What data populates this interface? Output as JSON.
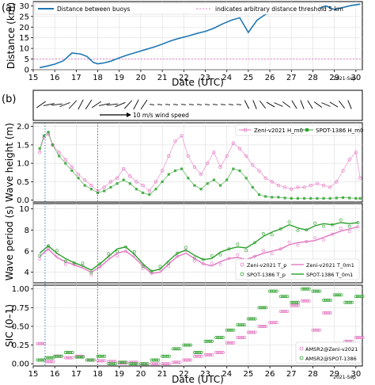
{
  "figure": {
    "panel_labels": [
      "(a)",
      "(b)"
    ],
    "date_label": "2021-Sep"
  },
  "chart_data": [
    {
      "type": "line",
      "panel": "a",
      "xlabel": "Date (UTC)",
      "ylabel": "Distance (km)",
      "xlim": [
        15,
        30.3
      ],
      "ylim": [
        0,
        32
      ],
      "xticks": [
        15,
        16,
        17,
        18,
        19,
        20,
        21,
        22,
        23,
        24,
        25,
        26,
        27,
        28,
        29,
        30
      ],
      "yticks": [
        0,
        5,
        10,
        15,
        20,
        25,
        30
      ],
      "legend": [
        "Distance between buoys",
        "indicates arbitrary distance threshold 5 km"
      ],
      "threshold": 5,
      "series": [
        {
          "name": "Distance between buoys",
          "color": "#1f77b4",
          "x": [
            15.3,
            15.6,
            16.0,
            16.4,
            16.8,
            17.2,
            17.5,
            17.8,
            18.0,
            18.3,
            18.6,
            19.0,
            19.4,
            19.8,
            20.2,
            20.6,
            21.0,
            21.4,
            21.8,
            22.2,
            22.6,
            23.0,
            23.4,
            23.8,
            24.2,
            24.6,
            25.0,
            25.4,
            25.8,
            26.2,
            26.6,
            27.0,
            27.4,
            27.8,
            28.2,
            28.6,
            29.0,
            29.4,
            29.8,
            30.2
          ],
          "y": [
            1.0,
            1.6,
            2.6,
            4.2,
            7.8,
            7.4,
            6.2,
            3.4,
            2.8,
            3.2,
            4.0,
            5.6,
            7.0,
            8.2,
            9.4,
            10.6,
            12.0,
            13.6,
            14.8,
            15.8,
            17.0,
            18.0,
            19.5,
            21.5,
            23.2,
            24.4,
            17.5,
            23.2,
            26.0,
            27.0,
            28.2,
            29.0,
            29.4,
            29.8,
            28.4,
            30.0,
            28.2,
            29.2,
            30.2,
            30.8
          ]
        }
      ]
    },
    {
      "type": "quiver",
      "panel": "b-wind",
      "scale_label": "10 m/s wind speed"
    },
    {
      "type": "scatter",
      "panel": "b1",
      "ylabel": "Wave height (m)",
      "xlim": [
        15,
        30.3
      ],
      "ylim": [
        -0.05,
        2.1
      ],
      "yticks": [
        0.0,
        0.5,
        1.0,
        1.5,
        2.0
      ],
      "legend": [
        "Zeni-v2021 H_m0",
        "SPOT-1386 H_m0"
      ],
      "series": [
        {
          "name": "Zeni-v2021 H_m0",
          "color": "#e377c2",
          "x": [
            15.3,
            15.5,
            15.7,
            15.9,
            16.2,
            16.5,
            16.8,
            17.1,
            17.4,
            17.7,
            18.0,
            18.3,
            18.6,
            18.9,
            19.2,
            19.5,
            19.8,
            20.1,
            20.4,
            20.7,
            21.0,
            21.3,
            21.6,
            21.9,
            22.2,
            22.5,
            22.8,
            23.1,
            23.4,
            23.7,
            24.0,
            24.3,
            24.6,
            24.9,
            25.2,
            25.5,
            25.8,
            26.1,
            26.4,
            26.7,
            27.0,
            27.3,
            27.6,
            27.9,
            28.2,
            28.5,
            28.8,
            29.1,
            29.4,
            29.7,
            30.0,
            30.2
          ],
          "y": [
            1.3,
            1.7,
            1.8,
            1.5,
            1.3,
            1.1,
            0.9,
            0.7,
            0.55,
            0.4,
            0.25,
            0.35,
            0.5,
            0.6,
            0.85,
            0.65,
            0.5,
            0.4,
            0.25,
            0.5,
            0.8,
            1.2,
            1.6,
            1.75,
            1.2,
            0.9,
            0.7,
            1.0,
            1.3,
            0.9,
            1.2,
            1.55,
            1.4,
            1.2,
            0.95,
            0.8,
            0.6,
            0.5,
            0.4,
            0.35,
            0.3,
            0.35,
            0.35,
            0.4,
            0.45,
            0.4,
            0.35,
            0.5,
            0.8,
            1.1,
            1.3,
            0.6
          ]
        },
        {
          "name": "SPOT-1386 H_m0",
          "color": "#2ca02c",
          "x": [
            15.3,
            15.5,
            15.7,
            15.9,
            16.2,
            16.5,
            16.8,
            17.1,
            17.4,
            17.7,
            18.0,
            18.3,
            18.6,
            18.9,
            19.2,
            19.5,
            19.8,
            20.1,
            20.4,
            20.7,
            21.0,
            21.3,
            21.6,
            21.9,
            22.2,
            22.5,
            22.8,
            23.1,
            23.4,
            23.7,
            24.0,
            24.3,
            24.6,
            24.9,
            25.2,
            25.5,
            25.8,
            26.1,
            26.4,
            26.7,
            27.0,
            27.3,
            27.6,
            27.9,
            28.2,
            28.5,
            28.8,
            29.1,
            29.4,
            29.7,
            30.0,
            30.2
          ],
          "y": [
            1.4,
            1.75,
            1.85,
            1.5,
            1.2,
            1.0,
            0.8,
            0.6,
            0.4,
            0.3,
            0.2,
            0.25,
            0.35,
            0.45,
            0.55,
            0.45,
            0.3,
            0.2,
            0.15,
            0.3,
            0.5,
            0.7,
            0.8,
            0.85,
            0.6,
            0.4,
            0.3,
            0.45,
            0.55,
            0.4,
            0.55,
            0.85,
            0.8,
            0.6,
            0.35,
            0.15,
            0.1,
            0.08,
            0.08,
            0.06,
            0.05,
            0.05,
            0.05,
            0.05,
            0.05,
            0.05,
            0.05,
            0.06,
            0.07,
            0.06,
            0.05,
            0.05
          ]
        }
      ]
    },
    {
      "type": "line",
      "panel": "b2",
      "ylabel": "Wave period (s)",
      "xlim": [
        15,
        30.3
      ],
      "ylim": [
        3,
        10.5
      ],
      "yticks": [
        4,
        6,
        8,
        10
      ],
      "legend": [
        "Zeni-v2021 T_p",
        "Zeni-v2021 T_0m1",
        "SPOT-1386 T_p",
        "SPOT-1386 T_0m1"
      ],
      "series": [
        {
          "name": "Zeni-v2021 T_0m1",
          "color": "#e377c2",
          "x": [
            15.3,
            15.7,
            16.1,
            16.5,
            16.9,
            17.3,
            17.7,
            18.1,
            18.5,
            18.9,
            19.3,
            19.7,
            20.1,
            20.5,
            20.9,
            21.3,
            21.7,
            22.1,
            22.5,
            22.9,
            23.3,
            23.7,
            24.1,
            24.5,
            24.9,
            25.3,
            25.7,
            26.1,
            26.5,
            26.9,
            27.3,
            27.7,
            28.1,
            28.5,
            28.9,
            29.3,
            29.7,
            30.1
          ],
          "y": [
            5.5,
            6.2,
            5.4,
            5.0,
            4.7,
            4.4,
            4.0,
            4.5,
            5.2,
            5.8,
            6.0,
            5.4,
            4.6,
            3.9,
            4.0,
            4.8,
            5.5,
            5.8,
            5.3,
            4.8,
            4.6,
            5.0,
            5.3,
            5.4,
            5.2,
            5.5,
            5.8,
            6.0,
            6.2,
            6.6,
            6.8,
            6.9,
            7.0,
            7.3,
            7.6,
            7.9,
            8.1,
            8.3
          ]
        },
        {
          "name": "SPOT-1386 T_0m1",
          "color": "#2ca02c",
          "x": [
            15.3,
            15.7,
            16.1,
            16.5,
            16.9,
            17.3,
            17.7,
            18.1,
            18.5,
            18.9,
            19.3,
            19.7,
            20.1,
            20.5,
            20.9,
            21.3,
            21.7,
            22.1,
            22.5,
            22.9,
            23.3,
            23.7,
            24.1,
            24.5,
            24.9,
            25.3,
            25.7,
            26.1,
            26.5,
            26.9,
            27.3,
            27.7,
            28.1,
            28.5,
            28.9,
            29.3,
            29.7,
            30.1
          ],
          "y": [
            5.8,
            6.5,
            5.8,
            5.3,
            4.9,
            4.6,
            4.2,
            4.8,
            5.5,
            6.2,
            6.4,
            5.7,
            4.8,
            4.1,
            4.3,
            5.1,
            5.8,
            6.1,
            5.6,
            5.2,
            5.3,
            5.9,
            6.2,
            6.4,
            6.3,
            6.8,
            7.4,
            7.8,
            8.1,
            8.5,
            8.2,
            8.0,
            8.4,
            8.6,
            8.5,
            8.7,
            8.6,
            8.7
          ]
        }
      ]
    },
    {
      "type": "scatter",
      "panel": "b3",
      "ylabel": "SIC (0–1)",
      "xlabel": "Date (UTC)",
      "xlim": [
        15,
        30.3
      ],
      "ylim": [
        -0.03,
        1.05
      ],
      "yticks": [
        0.0,
        0.25,
        0.5,
        0.75,
        1.0
      ],
      "xticks": [
        15,
        16,
        17,
        18,
        19,
        20,
        21,
        22,
        23,
        24,
        25,
        26,
        27,
        28,
        29,
        30
      ],
      "legend": [
        "AMSR2@Zeni-v2021",
        "AMSR2@SPOT-1386"
      ],
      "series": [
        {
          "name": "AMSR2@Zeni-v2021",
          "color": "#e377c2",
          "x": [
            15.2,
            15.6,
            16.0,
            16.5,
            17.0,
            17.5,
            18.0,
            18.5,
            19.0,
            19.5,
            20.0,
            20.5,
            21.0,
            21.5,
            22.0,
            22.5,
            23.0,
            23.5,
            24.0,
            24.5,
            25.0,
            25.5,
            26.0,
            26.5,
            27.0,
            27.5,
            28.0,
            28.5,
            29.0,
            29.5,
            30.0
          ],
          "y": [
            0.27,
            0.03,
            0.1,
            0.08,
            0.1,
            0.05,
            0.04,
            0.03,
            0.01,
            0.02,
            0.0,
            0.0,
            0.0,
            0.02,
            0.05,
            0.1,
            0.12,
            0.15,
            0.28,
            0.35,
            0.42,
            0.5,
            0.55,
            0.7,
            0.78,
            0.84,
            0.45,
            0.68,
            0.27,
            0.3,
            0.35
          ]
        },
        {
          "name": "AMSR2@SPOT-1386",
          "color": "#2ca02c",
          "x": [
            15.2,
            15.6,
            16.0,
            16.5,
            17.0,
            17.5,
            18.0,
            18.5,
            19.0,
            19.5,
            20.0,
            20.5,
            21.0,
            21.5,
            22.0,
            22.5,
            23.0,
            23.5,
            24.0,
            24.5,
            25.0,
            25.5,
            26.0,
            26.5,
            27.0,
            27.5,
            28.0,
            28.5,
            29.0,
            29.5,
            30.0
          ],
          "y": [
            0.05,
            0.08,
            0.1,
            0.15,
            0.09,
            0.05,
            0.1,
            0.0,
            0.02,
            0.0,
            0.0,
            0.05,
            0.1,
            0.2,
            0.25,
            0.15,
            0.3,
            0.35,
            0.45,
            0.52,
            0.6,
            0.75,
            0.97,
            0.9,
            0.82,
            1.0,
            0.97,
            0.85,
            0.92,
            0.82,
            0.9
          ]
        }
      ]
    }
  ]
}
